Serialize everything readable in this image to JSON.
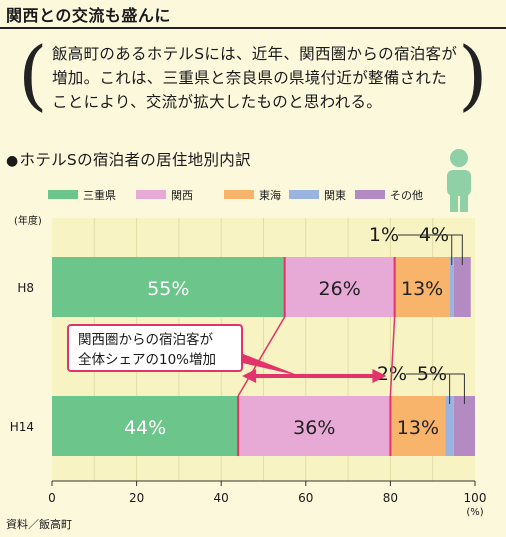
{
  "header": {
    "title": "関西との交流も盛んに"
  },
  "intro": {
    "text": "飯高町のあるホテルSには、近年、関西圏からの宿泊客が増加。これは、三重県と奈良県の県境付近が整備されたことにより、交流が拡大したものと思われる。"
  },
  "subtitle": {
    "bullet": "●",
    "text": "ホテルSの宿泊者の居住地別内訳"
  },
  "source": "資料／飯高町",
  "colors": {
    "三重県": "#6cc58a",
    "関西": "#e7a9d6",
    "東海": "#f9b46c",
    "関東": "#9ab4df",
    "その他": "#b48ac2",
    "accent": "#e2336a",
    "plot_bg": "#f8f3c3"
  },
  "chart_data": {
    "type": "bar",
    "orientation": "horizontal",
    "stacked": true,
    "categories": [
      "H8",
      "H14"
    ],
    "series": [
      {
        "name": "三重県",
        "values": [
          55,
          44
        ]
      },
      {
        "name": "関西",
        "values": [
          26,
          36
        ]
      },
      {
        "name": "東海",
        "values": [
          13,
          13
        ]
      },
      {
        "name": "関東",
        "values": [
          1,
          2
        ]
      },
      {
        "name": "その他",
        "values": [
          4,
          5
        ]
      }
    ],
    "data_labels": [
      [
        "55%",
        "26%",
        "13%",
        "1%",
        "4%"
      ],
      [
        "44%",
        "36%",
        "13%",
        "2%",
        "5%"
      ]
    ],
    "xlim": [
      0,
      100
    ],
    "xticks": [
      "0",
      "20",
      "40",
      "60",
      "80",
      "100"
    ],
    "x_unit": "(%)",
    "y_axis_label": "(年度)",
    "legend_position": "top",
    "annotation": {
      "text": [
        "関西圏からの宿泊客が",
        "全体シェアの10%増加"
      ]
    }
  }
}
